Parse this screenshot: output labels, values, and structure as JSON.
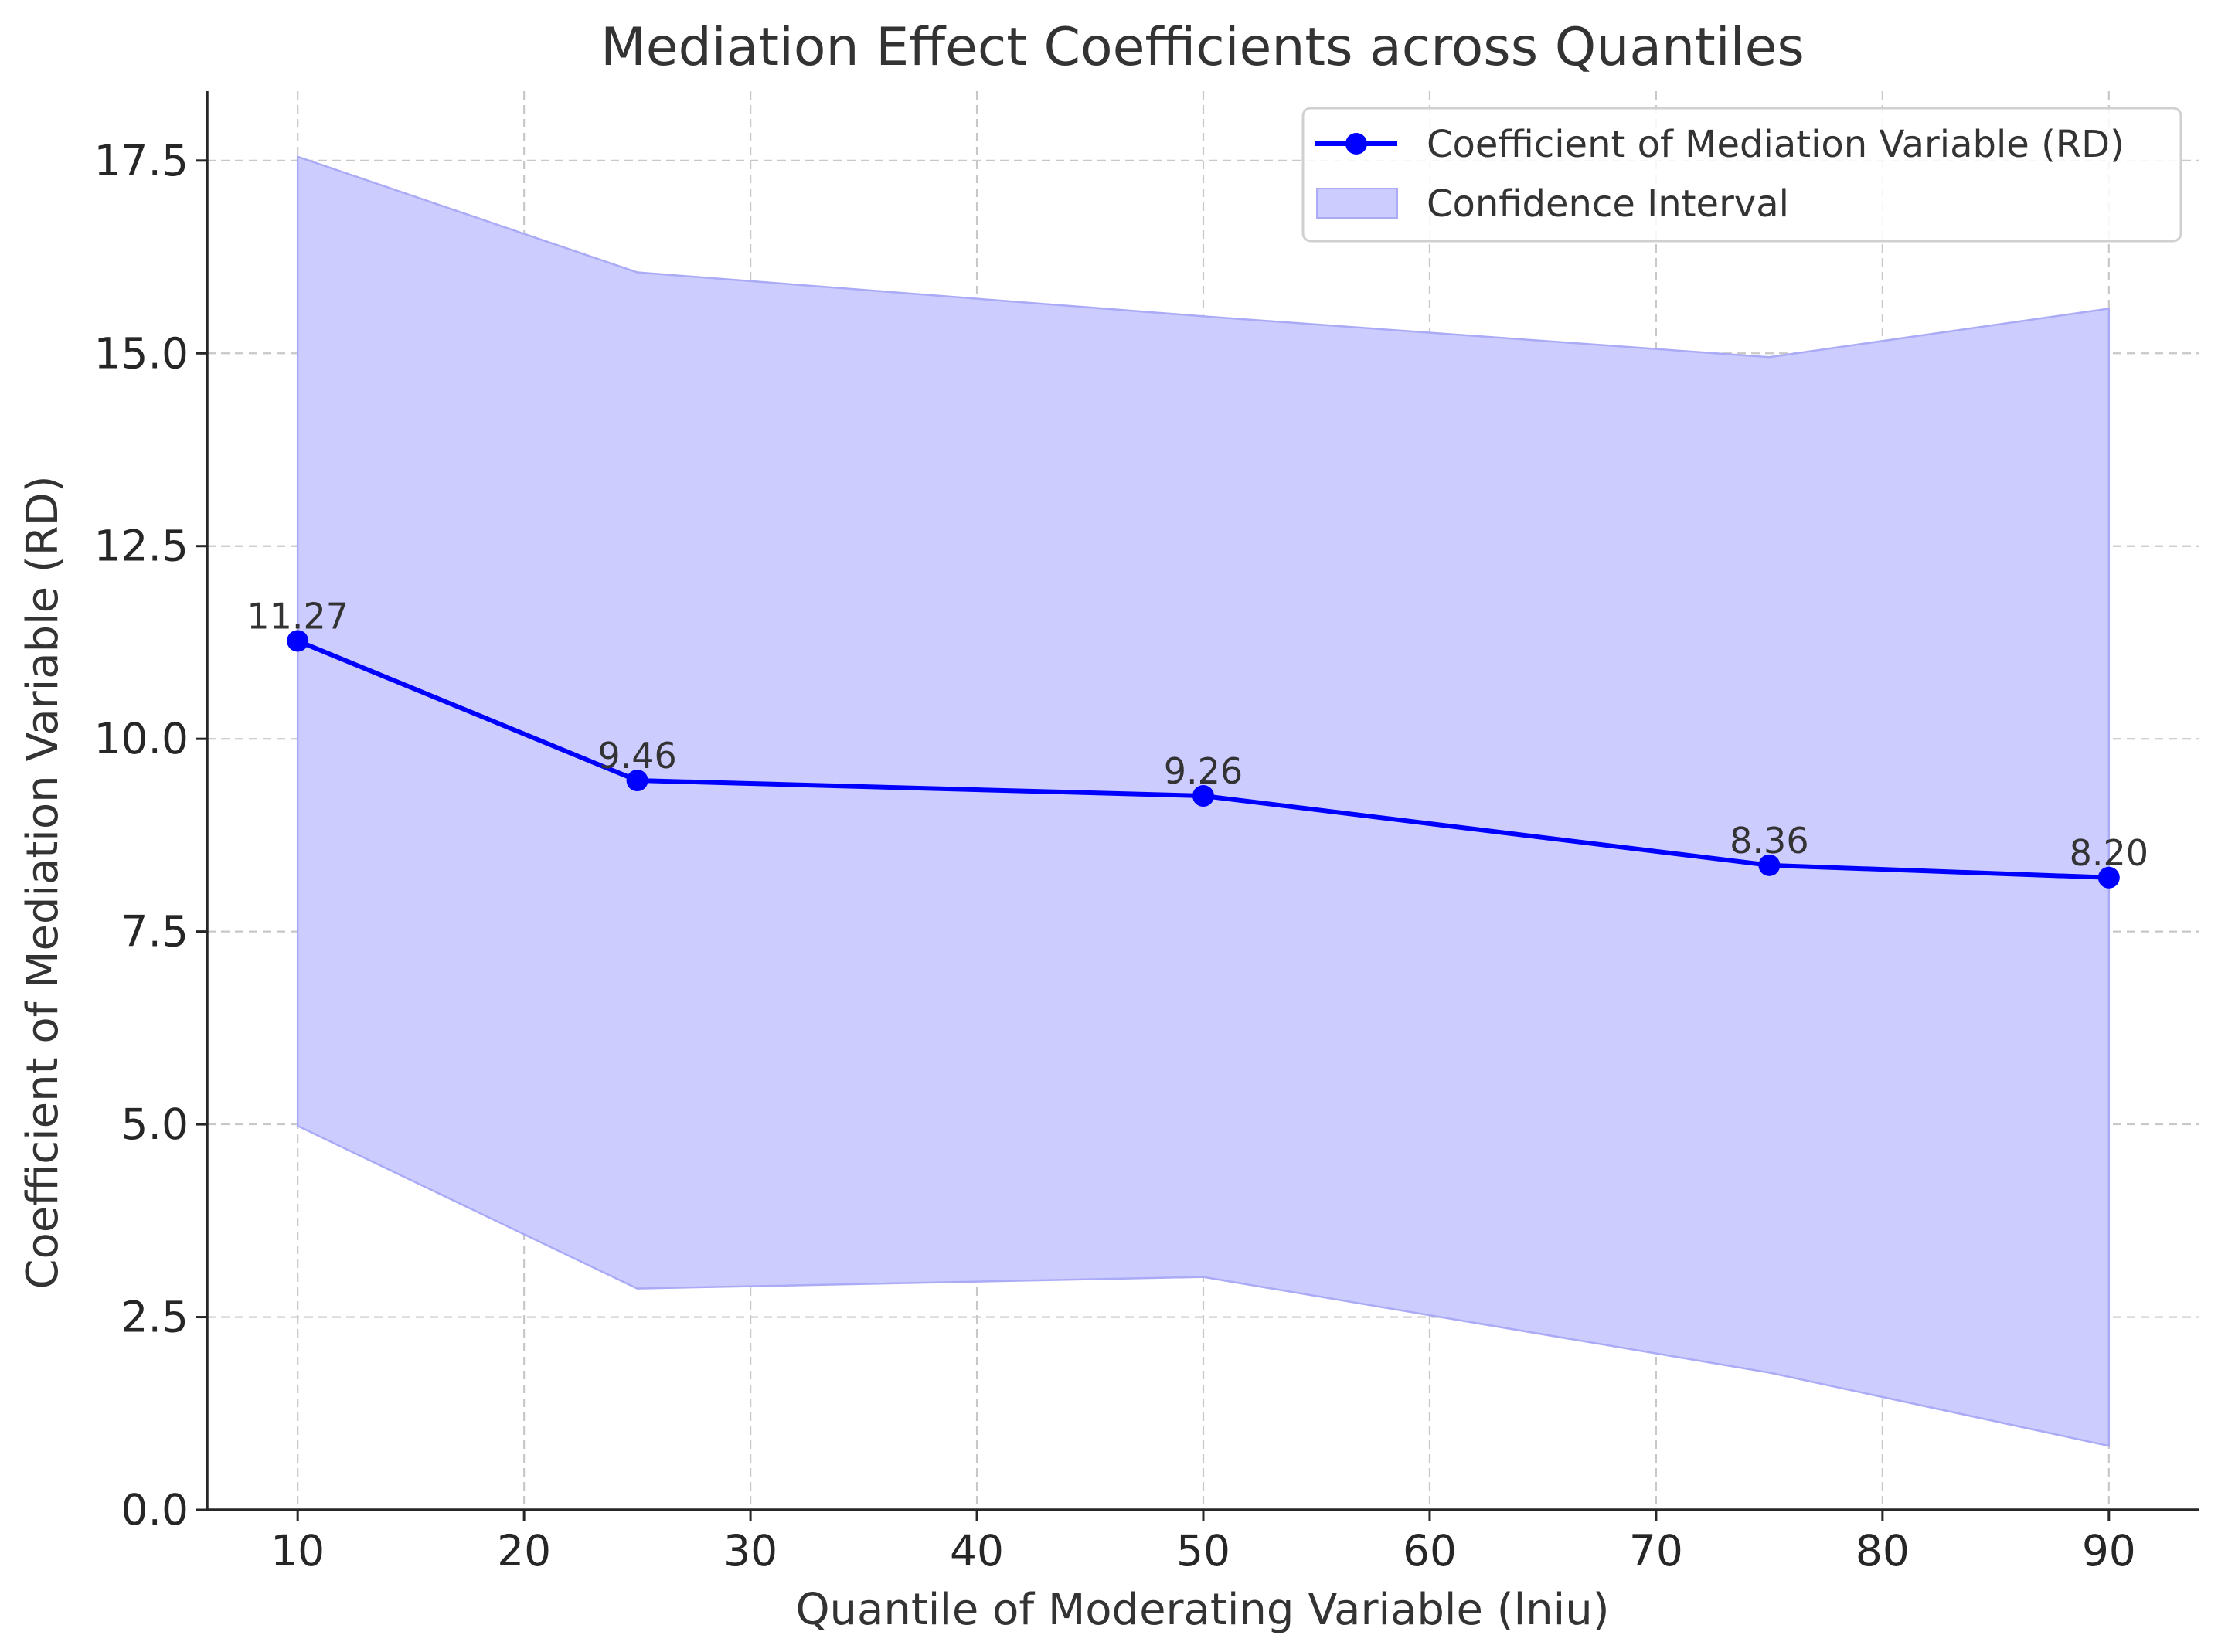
{
  "chart_data": {
    "type": "line",
    "title": "Mediation Effect Coefficients across Quantiles",
    "xlabel": "Quantile of Moderating Variable (lniu)",
    "ylabel": "Coefficient of Mediation Variable (RD)",
    "xlim": [
      6,
      94
    ],
    "ylim": [
      0,
      18.4
    ],
    "xticks": [
      10,
      20,
      30,
      40,
      50,
      60,
      70,
      80,
      90
    ],
    "xtick_labels": [
      "10",
      "20",
      "30",
      "40",
      "50",
      "60",
      "70",
      "80",
      "90"
    ],
    "yticks": [
      0,
      2.5,
      5,
      7.5,
      10,
      12.5,
      15,
      17.5
    ],
    "ytick_labels": [
      "0.0",
      "2.5",
      "5.0",
      "7.5",
      "10.0",
      "12.5",
      "15.0",
      "17.5"
    ],
    "grid": true,
    "legend_position": "top-right",
    "series": [
      {
        "name": "Coefficient of Mediation Variable (RD)",
        "x": [
          10,
          25,
          50,
          75,
          90
        ],
        "values": [
          11.27,
          9.46,
          9.26,
          8.36,
          8.2
        ],
        "data_labels": [
          "11.27",
          "9.46",
          "9.26",
          "8.36",
          "8.20"
        ],
        "color": "#0000ff",
        "marker": "circle"
      }
    ],
    "confidence_interval": {
      "name": "Confidence Interval",
      "x": [
        10,
        25,
        50,
        75,
        90
      ],
      "lower": [
        4.98,
        2.87,
        3.02,
        1.78,
        0.83
      ],
      "upper": [
        17.55,
        16.05,
        15.48,
        14.95,
        15.58
      ],
      "color": "#ccccff",
      "edge_color": "#aaaaf6"
    }
  }
}
